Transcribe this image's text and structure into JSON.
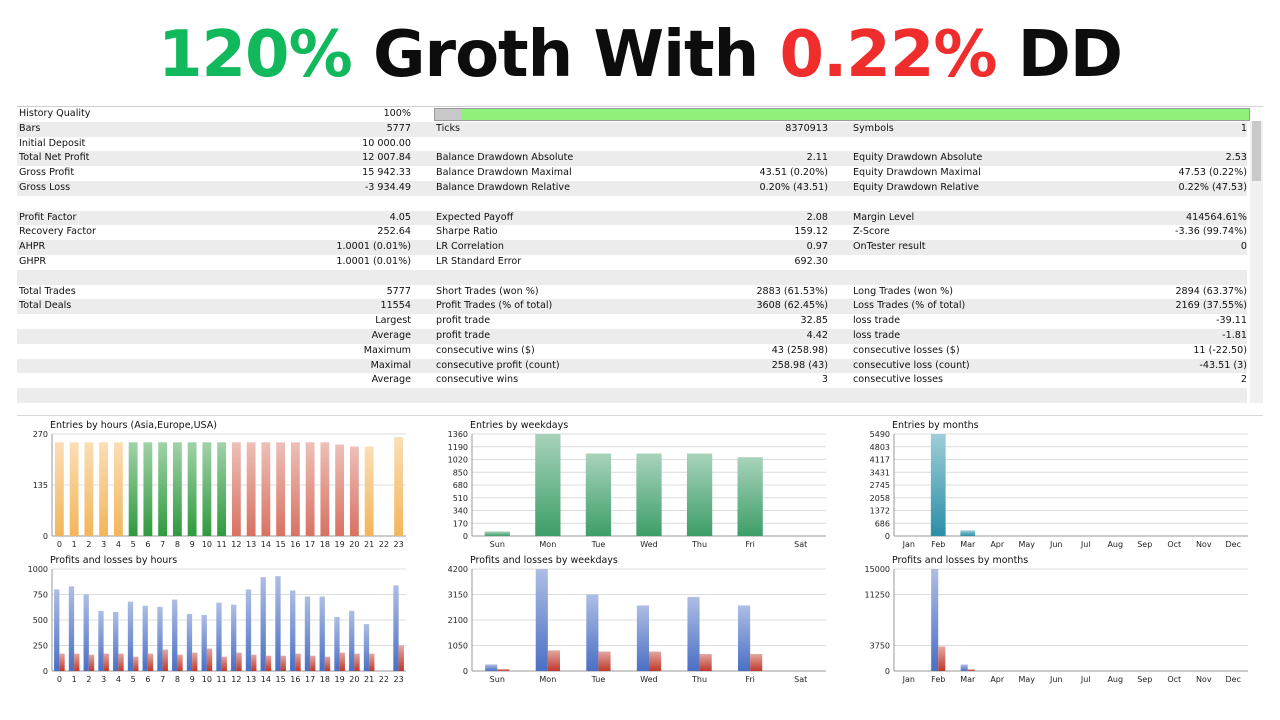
{
  "headline": {
    "part1": "120%",
    "part2": "Groth With",
    "part3": "0.22%",
    "part4": "DD",
    "colors": {
      "green": "#11b85c",
      "red": "#f02d2d",
      "black": "#0d0d0d"
    }
  },
  "history_quality": {
    "label": "History Quality",
    "value": "100%",
    "fraction": 1.0
  },
  "report_rows": [
    {
      "shade": false,
      "c1l": "",
      "c1v": "",
      "c2l": "",
      "c2v": "",
      "c3l": "",
      "c3v": ""
    },
    {
      "shade": true,
      "c1l": "Bars",
      "c1v": "5777",
      "c2l": "Ticks",
      "c2v": "8370913",
      "c3l": "Symbols",
      "c3v": "1"
    },
    {
      "shade": false,
      "c1l": "Initial Deposit",
      "c1v": "10 000.00",
      "c2l": "",
      "c2v": "",
      "c3l": "",
      "c3v": ""
    },
    {
      "shade": true,
      "c1l": "Total Net Profit",
      "c1v": "12 007.84",
      "c2l": "Balance Drawdown Absolute",
      "c2v": "2.11",
      "c3l": "Equity Drawdown Absolute",
      "c3v": "2.53"
    },
    {
      "shade": false,
      "c1l": "Gross Profit",
      "c1v": "15 942.33",
      "c2l": "Balance Drawdown Maximal",
      "c2v": "43.51 (0.20%)",
      "c3l": "Equity Drawdown Maximal",
      "c3v": "47.53 (0.22%)"
    },
    {
      "shade": true,
      "c1l": "Gross Loss",
      "c1v": "-3 934.49",
      "c2l": "Balance Drawdown Relative",
      "c2v": "0.20% (43.51)",
      "c3l": "Equity Drawdown Relative",
      "c3v": "0.22% (47.53)"
    },
    {
      "shade": false,
      "c1l": "",
      "c1v": "",
      "c2l": "",
      "c2v": "",
      "c3l": "",
      "c3v": ""
    },
    {
      "shade": true,
      "c1l": "Profit Factor",
      "c1v": "4.05",
      "c2l": "Expected Payoff",
      "c2v": "2.08",
      "c3l": "Margin Level",
      "c3v": "414564.61%"
    },
    {
      "shade": false,
      "c1l": "Recovery Factor",
      "c1v": "252.64",
      "c2l": "Sharpe Ratio",
      "c2v": "159.12",
      "c3l": "Z-Score",
      "c3v": "-3.36 (99.74%)"
    },
    {
      "shade": true,
      "c1l": "AHPR",
      "c1v": "1.0001 (0.01%)",
      "c2l": "LR Correlation",
      "c2v": "0.97",
      "c3l": "OnTester result",
      "c3v": "0"
    },
    {
      "shade": false,
      "c1l": "GHPR",
      "c1v": "1.0001 (0.01%)",
      "c2l": "LR Standard Error",
      "c2v": "692.30",
      "c3l": "",
      "c3v": ""
    },
    {
      "shade": true,
      "c1l": "",
      "c1v": "",
      "c2l": "",
      "c2v": "",
      "c3l": "",
      "c3v": ""
    },
    {
      "shade": false,
      "c1l": "Total Trades",
      "c1v": "5777",
      "c2l": "Short Trades (won %)",
      "c2v": "2883 (61.53%)",
      "c3l": "Long Trades (won %)",
      "c3v": "2894 (63.37%)"
    },
    {
      "shade": true,
      "c1l": "Total Deals",
      "c1v": "11554",
      "c2l": "Profit Trades (% of total)",
      "c2v": "3608 (62.45%)",
      "c3l": "Loss Trades (% of total)",
      "c3v": "2169 (37.55%)"
    },
    {
      "shade": false,
      "c1l": "",
      "c1v": "Largest",
      "c2l": "profit trade",
      "c2v": "32.85",
      "c3l": "loss trade",
      "c3v": "-39.11"
    },
    {
      "shade": true,
      "c1l": "",
      "c1v": "Average",
      "c2l": "profit trade",
      "c2v": "4.42",
      "c3l": "loss trade",
      "c3v": "-1.81"
    },
    {
      "shade": false,
      "c1l": "",
      "c1v": "Maximum",
      "c2l": "consecutive wins ($)",
      "c2v": "43 (258.98)",
      "c3l": "consecutive losses ($)",
      "c3v": "11 (-22.50)"
    },
    {
      "shade": true,
      "c1l": "",
      "c1v": "Maximal",
      "c2l": "consecutive profit (count)",
      "c2v": "258.98 (43)",
      "c3l": "consecutive loss (count)",
      "c3v": "-43.51 (3)"
    },
    {
      "shade": false,
      "c1l": "",
      "c1v": "Average",
      "c2l": "consecutive wins",
      "c2v": "3",
      "c3l": "consecutive losses",
      "c3v": "2"
    },
    {
      "shade": true,
      "c1l": "",
      "c1v": "",
      "c2l": "",
      "c2v": "",
      "c3l": "",
      "c3v": ""
    }
  ],
  "chart_data": [
    {
      "id": "entries-hours",
      "type": "bar",
      "title": "Entries by hours (Asia,Europe,USA)",
      "categories": [
        "0",
        "1",
        "2",
        "3",
        "4",
        "5",
        "6",
        "7",
        "8",
        "9",
        "10",
        "11",
        "12",
        "13",
        "14",
        "15",
        "16",
        "17",
        "18",
        "19",
        "20",
        "21",
        "22",
        "23"
      ],
      "values": [
        248,
        248,
        248,
        248,
        248,
        248,
        248,
        248,
        248,
        248,
        248,
        248,
        248,
        248,
        248,
        248,
        248,
        248,
        248,
        242,
        237,
        237,
        0,
        262
      ],
      "yticks": [
        0,
        135,
        270
      ],
      "ylim": [
        0,
        270
      ],
      "session_colors": [
        "#f3b55a",
        "#f3b55a",
        "#f3b55a",
        "#f3b55a",
        "#f3b55a",
        "#2f9a3e",
        "#2f9a3e",
        "#2f9a3e",
        "#2f9a3e",
        "#2f9a3e",
        "#2f9a3e",
        "#2f9a3e",
        "#d87262",
        "#d87262",
        "#d87262",
        "#d87262",
        "#d87262",
        "#d87262",
        "#d87262",
        "#d87262",
        "#d87262",
        "#f3b55a",
        "#f3b55a",
        "#f3b55a"
      ]
    },
    {
      "id": "entries-weekdays",
      "type": "bar",
      "title": "Entries by weekdays",
      "categories": [
        "Sun",
        "Mon",
        "Tue",
        "Wed",
        "Thu",
        "Fri",
        "Sat"
      ],
      "values": [
        60,
        1360,
        1100,
        1100,
        1100,
        1050,
        0
      ],
      "yticks": [
        0,
        170,
        340,
        510,
        680,
        850,
        1020,
        1190,
        1360
      ],
      "ylim": [
        0,
        1360
      ],
      "color": "#3d9e68"
    },
    {
      "id": "entries-months",
      "type": "bar",
      "title": "Entries by months",
      "categories": [
        "Jan",
        "Feb",
        "Mar",
        "Apr",
        "May",
        "Jun",
        "Jul",
        "Aug",
        "Sep",
        "Oct",
        "Nov",
        "Dec"
      ],
      "values": [
        0,
        5490,
        300,
        0,
        0,
        0,
        0,
        0,
        0,
        0,
        0,
        0
      ],
      "yticks": [
        0,
        686,
        1372,
        2058,
        2745,
        3431,
        4117,
        4803,
        5490
      ],
      "ylim": [
        0,
        5490
      ],
      "color": "#2a8fa8"
    },
    {
      "id": "pl-hours",
      "type": "bar",
      "title": "Profits and losses by hours",
      "categories": [
        "0",
        "1",
        "2",
        "3",
        "4",
        "5",
        "6",
        "7",
        "8",
        "9",
        "10",
        "11",
        "12",
        "13",
        "14",
        "15",
        "16",
        "17",
        "18",
        "19",
        "20",
        "21",
        "22",
        "23"
      ],
      "series": [
        {
          "values": [
            800,
            830,
            750,
            590,
            580,
            680,
            640,
            630,
            700,
            560,
            550,
            670,
            650,
            800,
            920,
            930,
            790,
            730,
            730,
            530,
            590,
            460,
            0,
            840
          ],
          "color": "#4a6fc4"
        },
        {
          "values": [
            170,
            170,
            160,
            170,
            170,
            140,
            170,
            210,
            160,
            180,
            220,
            140,
            180,
            160,
            150,
            150,
            170,
            150,
            140,
            180,
            170,
            170,
            0,
            250
          ],
          "color": "#c0392b"
        }
      ],
      "yticks": [
        0,
        250,
        500,
        750,
        1000
      ],
      "ylim": [
        0,
        1000
      ]
    },
    {
      "id": "pl-weekdays",
      "type": "bar",
      "title": "Profits and losses by weekdays",
      "categories": [
        "Sun",
        "Mon",
        "Tue",
        "Wed",
        "Thu",
        "Fri",
        "Sat"
      ],
      "series": [
        {
          "values": [
            270,
            4200,
            3150,
            2700,
            3050,
            2700,
            0
          ],
          "color": "#4a6fc4"
        },
        {
          "values": [
            80,
            850,
            800,
            800,
            700,
            700,
            0
          ],
          "color": "#c0392b"
        }
      ],
      "yticks": [
        0,
        1050,
        2100,
        3150,
        4200
      ],
      "ylim": [
        0,
        4200
      ]
    },
    {
      "id": "pl-months",
      "type": "bar",
      "title": "Profits and losses by months",
      "categories": [
        "Jan",
        "Feb",
        "Mar",
        "Apr",
        "May",
        "Jun",
        "Jul",
        "Aug",
        "Sep",
        "Oct",
        "Nov",
        "Dec"
      ],
      "series": [
        {
          "values": [
            0,
            15000,
            950,
            0,
            0,
            0,
            0,
            0,
            0,
            0,
            0,
            0
          ],
          "color": "#4a6fc4"
        },
        {
          "values": [
            0,
            3600,
            250,
            0,
            0,
            0,
            0,
            0,
            0,
            0,
            0,
            0
          ],
          "color": "#c0392b"
        }
      ],
      "yticks": [
        0,
        3750,
        11250,
        15000
      ],
      "ylim": [
        0,
        15000
      ]
    }
  ]
}
